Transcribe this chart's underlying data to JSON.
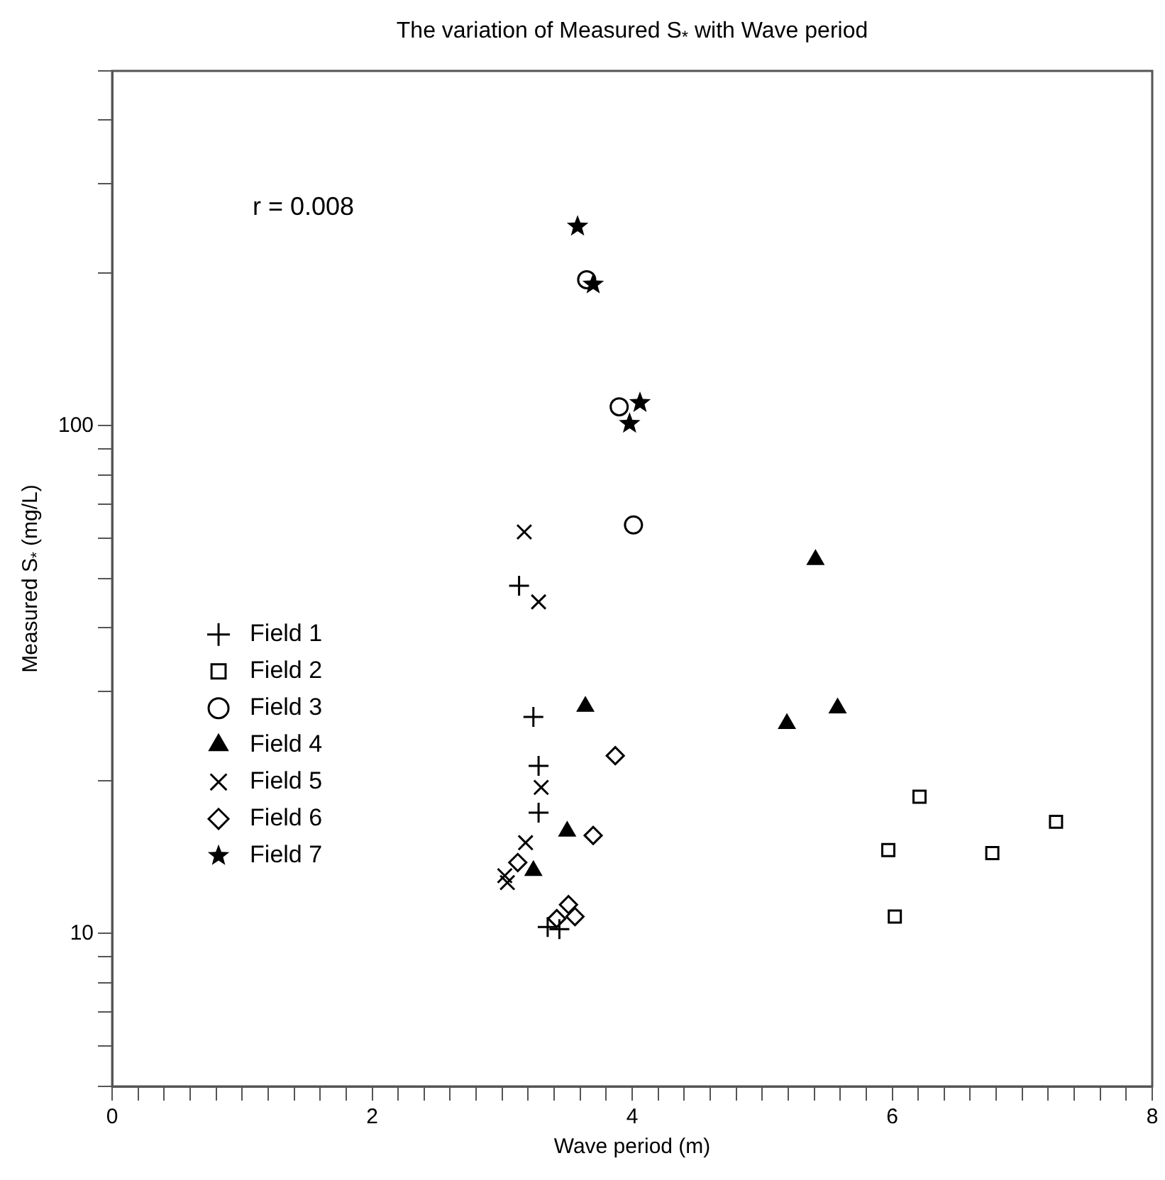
{
  "chart_data": {
    "type": "scatter",
    "title": "The variation of Measured S$_{*}$ with Wave period",
    "xlabel": "Wave period (m)",
    "ylabel": "Measured S$_{*}$ (mg/L)",
    "annotations": [
      "r = 0.008"
    ],
    "log": "y",
    "grid": false,
    "legend": "left",
    "xlim": [
      0,
      8
    ],
    "ylim": [
      5,
      500
    ],
    "xticks": [
      0,
      {
        "value": 0.2,
        "label": null
      },
      {
        "value": 0.4,
        "label": null
      },
      {
        "value": 0.6,
        "label": null
      },
      {
        "value": 0.8,
        "label": null
      },
      {
        "value": 1,
        "label": null
      },
      {
        "value": 1.2,
        "label": null
      },
      {
        "value": 1.4,
        "label": null
      },
      {
        "value": 1.6,
        "label": null
      },
      {
        "value": 1.8,
        "label": null
      },
      2,
      {
        "value": 2.2,
        "label": null
      },
      {
        "value": 2.4,
        "label": null
      },
      {
        "value": 2.6,
        "label": null
      },
      {
        "value": 2.8,
        "label": null
      },
      {
        "value": 3,
        "label": null
      },
      {
        "value": 3.2,
        "label": null
      },
      {
        "value": 3.4,
        "label": null
      },
      {
        "value": 3.6,
        "label": null
      },
      {
        "value": 3.8,
        "label": null
      },
      4,
      {
        "value": 4.2,
        "label": null
      },
      {
        "value": 4.4,
        "label": null
      },
      {
        "value": 4.6,
        "label": null
      },
      {
        "value": 4.8,
        "label": null
      },
      {
        "value": 5,
        "label": null
      },
      {
        "value": 5.2,
        "label": null
      },
      {
        "value": 5.4,
        "label": null
      },
      {
        "value": 5.6,
        "label": null
      },
      {
        "value": 5.8,
        "label": null
      },
      6,
      {
        "value": 6.2,
        "label": null
      },
      {
        "value": 6.4,
        "label": null
      },
      {
        "value": 6.6,
        "label": null
      },
      {
        "value": 6.8,
        "label": null
      },
      {
        "value": 7,
        "label": null
      },
      {
        "value": 7.2,
        "label": null
      },
      {
        "value": 7.4,
        "label": null
      },
      {
        "value": 7.6,
        "label": null
      },
      {
        "value": 7.8,
        "label": null
      },
      8
    ],
    "yticks": [
      {
        "value": 5,
        "label": null
      },
      {
        "value": 6,
        "label": null
      },
      {
        "value": 7,
        "label": null
      },
      {
        "value": 8,
        "label": null
      },
      {
        "value": 9,
        "label": null
      },
      10,
      {
        "value": 20,
        "label": null
      },
      {
        "value": 30,
        "label": null
      },
      {
        "value": 40,
        "label": null
      },
      {
        "value": 50,
        "label": null
      },
      {
        "value": 60,
        "label": null
      },
      {
        "value": 70,
        "label": null
      },
      {
        "value": 80,
        "label": null
      },
      {
        "value": 90,
        "label": null
      },
      100,
      {
        "value": 200,
        "label": null
      },
      {
        "value": 300,
        "label": null
      },
      {
        "value": 400,
        "label": null
      },
      {
        "value": 500,
        "label": null
      }
    ],
    "series": [
      {
        "name": "Field 1",
        "color": "#000000",
        "marker": "cross",
        "x": [
          3.13,
          3.24,
          3.28,
          3.28,
          3.35,
          3.44
        ],
        "values": [
          48.4,
          26.7,
          21.4,
          17.3,
          10.3,
          10.2
        ]
      },
      {
        "name": "Field 2",
        "color": "#000000",
        "marker": "square",
        "x": [
          6.21,
          7.26,
          5.97,
          6.77,
          6.02
        ],
        "values": [
          18.6,
          16.6,
          14.6,
          14.4,
          10.8
        ]
      },
      {
        "name": "Field 3",
        "color": "#000000",
        "marker": "circle",
        "x": [
          3.65,
          3.9,
          4.01
        ],
        "values": [
          194,
          109,
          63.8
        ]
      },
      {
        "name": "Field 4",
        "color": "#000000",
        "marker": "triangle",
        "x": [
          5.41,
          5.58,
          5.19,
          3.64,
          3.5,
          3.24
        ],
        "values": [
          54.5,
          27.8,
          25.9,
          28,
          15.9,
          13.3
        ]
      },
      {
        "name": "Field 5",
        "color": "#000000",
        "marker": "x",
        "x": [
          3.17,
          3.28,
          3.3,
          3.18,
          3.02,
          3.04
        ],
        "values": [
          61.8,
          45,
          19.4,
          15.1,
          13,
          12.6
        ]
      },
      {
        "name": "Field 6",
        "color": "#000000",
        "marker": "diamond",
        "x": [
          3.87,
          3.7,
          3.12,
          3.51,
          3.56,
          3.42
        ],
        "values": [
          22.4,
          15.6,
          13.8,
          11.4,
          10.8,
          10.7
        ]
      },
      {
        "name": "Field 7",
        "color": "#000000",
        "marker": "star",
        "x": [
          3.58,
          3.7,
          4.06,
          3.98
        ],
        "values": [
          247,
          190,
          111,
          101
        ]
      }
    ]
  }
}
